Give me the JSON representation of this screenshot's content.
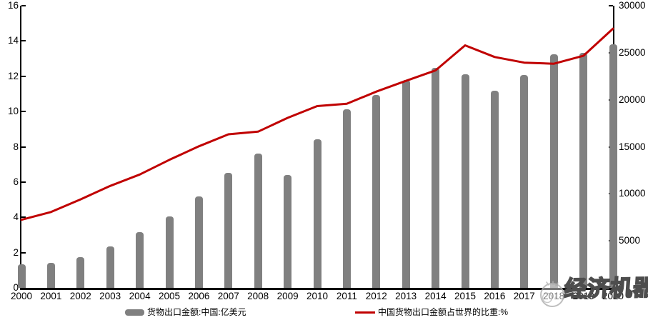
{
  "chart_data": {
    "type": "bar+line",
    "title": "",
    "categories": [
      "2000",
      "2001",
      "2002",
      "2003",
      "2004",
      "2005",
      "2006",
      "2007",
      "2008",
      "2009",
      "2010",
      "2011",
      "2012",
      "2013",
      "2014",
      "2015",
      "2016",
      "2017",
      "2018",
      "2019",
      "2020"
    ],
    "series": [
      {
        "name": "货物出口金额:中国:亿美元",
        "type": "bar",
        "axis": "right",
        "color": "#808080",
        "values": [
          2492,
          2661,
          3256,
          4382,
          5933,
          7620,
          9690,
          12205,
          14307,
          12016,
          15778,
          18984,
          20487,
          22090,
          23423,
          22735,
          20976,
          22634,
          24867,
          24990,
          25900
        ]
      },
      {
        "name": "中国货物出口金额占世界的比重:%",
        "type": "line",
        "axis": "left",
        "color": "#c00000",
        "values": [
          3.86,
          4.3,
          5.02,
          5.78,
          6.43,
          7.26,
          8.03,
          8.71,
          8.86,
          9.64,
          10.31,
          10.44,
          11.13,
          11.74,
          12.33,
          13.75,
          13.09,
          12.77,
          12.71,
          13.16,
          14.7
        ]
      }
    ],
    "left_axis": {
      "min": 0,
      "max": 16,
      "tick_step": 2,
      "tick_labels": [
        "0",
        "2",
        "4",
        "6",
        "8",
        "10",
        "12",
        "14",
        "16"
      ]
    },
    "right_axis": {
      "min": 0,
      "max": 30000,
      "tick_step": 5000,
      "tick_labels": [
        "0",
        "5000",
        "10000",
        "15000",
        "20000",
        "25000",
        "30000"
      ]
    },
    "grid": false,
    "legend_position": "bottom"
  },
  "watermark": {
    "text": "经济机器"
  }
}
